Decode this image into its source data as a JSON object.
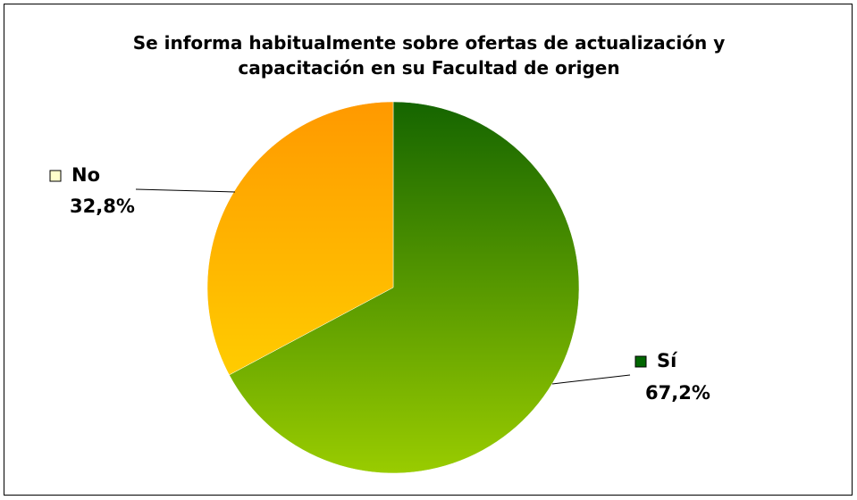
{
  "chart_data": {
    "type": "pie",
    "title": "Se informa habitualmente sobre ofertas de actualización y capacitación en su Facultad de origen",
    "categories": [
      "Sí",
      "No"
    ],
    "values": [
      67.2,
      32.8
    ],
    "value_labels": [
      "67,2%",
      "32,8%"
    ],
    "colors": [
      [
        "#156500",
        "#99cc00"
      ],
      [
        "#ff9900",
        "#ffcc00"
      ]
    ],
    "legend_colors": [
      "#006600",
      "#ffffcc"
    ]
  }
}
